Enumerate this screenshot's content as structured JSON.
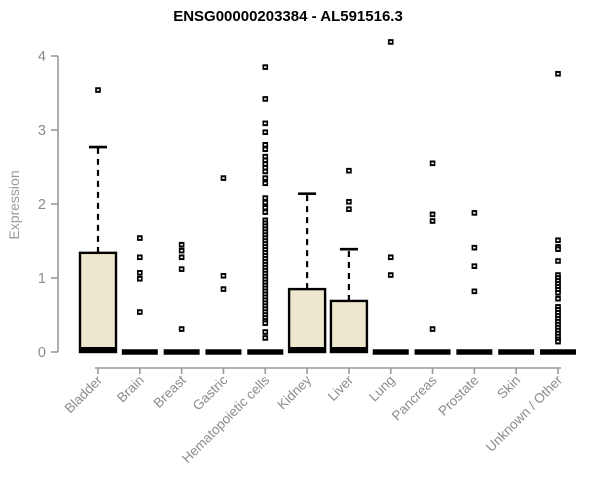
{
  "chart_data": {
    "type": "boxplot",
    "title": "ENSG00000203384 - AL591516.3",
    "ylabel": "Expression",
    "xlabel": "",
    "ylim": [
      0,
      4
    ],
    "yticks": [
      0,
      1,
      2,
      3,
      4
    ],
    "grid": "off",
    "legend": "none",
    "categories": [
      "Bladder",
      "Brain",
      "Breast",
      "Gastric",
      "Hematopoietic cells",
      "Kidney",
      "Liver",
      "Lung",
      "Pancreas",
      "Prostate",
      "Skin",
      "Unknown / Other"
    ],
    "boxes": [
      {
        "category": "Bladder",
        "q1": 0,
        "median": 0.03,
        "q3": 1.34,
        "whisker_low": 0,
        "whisker_high": 2.77,
        "outliers": [
          3.54
        ]
      },
      {
        "category": "Brain",
        "q1": 0,
        "median": 0,
        "q3": 0,
        "whisker_low": 0,
        "whisker_high": 0,
        "outliers": [
          1.54,
          1.28,
          1.07,
          0.99,
          0.54
        ]
      },
      {
        "category": "Breast",
        "q1": 0,
        "median": 0,
        "q3": 0,
        "whisker_low": 0,
        "whisker_high": 0,
        "outliers": [
          1.45,
          1.37,
          1.28,
          1.12,
          0.31
        ]
      },
      {
        "category": "Gastric",
        "q1": 0,
        "median": 0,
        "q3": 0,
        "whisker_low": 0,
        "whisker_high": 0,
        "outliers": [
          2.35,
          1.03,
          0.85
        ]
      },
      {
        "category": "Hematopoietic cells",
        "q1": 0,
        "median": 0,
        "q3": 0,
        "whisker_low": 0,
        "whisker_high": 0,
        "outliers": [
          3.85,
          3.42,
          3.09,
          2.97,
          2.8,
          2.74,
          2.64,
          2.59,
          2.54,
          2.49,
          2.44,
          2.35,
          2.28,
          2.08,
          2.02,
          1.95,
          1.89,
          1.78,
          1.74,
          1.7,
          1.66,
          1.62,
          1.58,
          1.54,
          1.5,
          1.46,
          1.42,
          1.38,
          1.34,
          1.3,
          1.26,
          1.22,
          1.18,
          1.14,
          1.1,
          1.06,
          1.02,
          0.98,
          0.94,
          0.9,
          0.86,
          0.82,
          0.78,
          0.74,
          0.7,
          0.66,
          0.62,
          0.58,
          0.54,
          0.5,
          0.46,
          0.42,
          0.39,
          0.27,
          0.19
        ]
      },
      {
        "category": "Kidney",
        "q1": 0,
        "median": 0.03,
        "q3": 0.85,
        "whisker_low": 0,
        "whisker_high": 2.14,
        "outliers": []
      },
      {
        "category": "Liver",
        "q1": 0,
        "median": 0.03,
        "q3": 0.69,
        "whisker_low": 0,
        "whisker_high": 1.39,
        "outliers": [
          2.45,
          2.03,
          1.93
        ]
      },
      {
        "category": "Lung",
        "q1": 0,
        "median": 0,
        "q3": 0,
        "whisker_low": 0,
        "whisker_high": 0,
        "outliers": [
          4.19,
          1.28,
          1.04
        ]
      },
      {
        "category": "Pancreas",
        "q1": 0,
        "median": 0,
        "q3": 0,
        "whisker_low": 0,
        "whisker_high": 0,
        "outliers": [
          2.55,
          1.86,
          1.77,
          0.31
        ]
      },
      {
        "category": "Prostate",
        "q1": 0,
        "median": 0,
        "q3": 0,
        "whisker_low": 0,
        "whisker_high": 0,
        "outliers": [
          1.88,
          1.41,
          1.16,
          0.82
        ]
      },
      {
        "category": "Skin",
        "q1": 0,
        "median": 0,
        "q3": 0,
        "whisker_low": 0,
        "whisker_high": 0,
        "outliers": []
      },
      {
        "category": "Unknown / Other",
        "q1": 0,
        "median": 0,
        "q3": 0,
        "whisker_low": 0,
        "whisker_high": 0,
        "outliers": [
          3.76,
          1.51,
          1.42,
          1.39,
          1.23,
          1.04,
          1.0,
          0.96,
          0.92,
          0.88,
          0.84,
          0.8,
          0.72,
          0.61,
          0.57,
          0.53,
          0.49,
          0.45,
          0.41,
          0.37,
          0.33,
          0.29,
          0.25,
          0.21,
          0.17,
          0.14
        ]
      }
    ],
    "colors": {
      "box_fill": "#ECE7CD",
      "box_border": "#000000",
      "median": "#000000",
      "outlier": "#000000",
      "axis": "#9a9a9a",
      "tick_text": "#8c8c8c",
      "title_text": "#000000",
      "background": "#ffffff"
    }
  }
}
